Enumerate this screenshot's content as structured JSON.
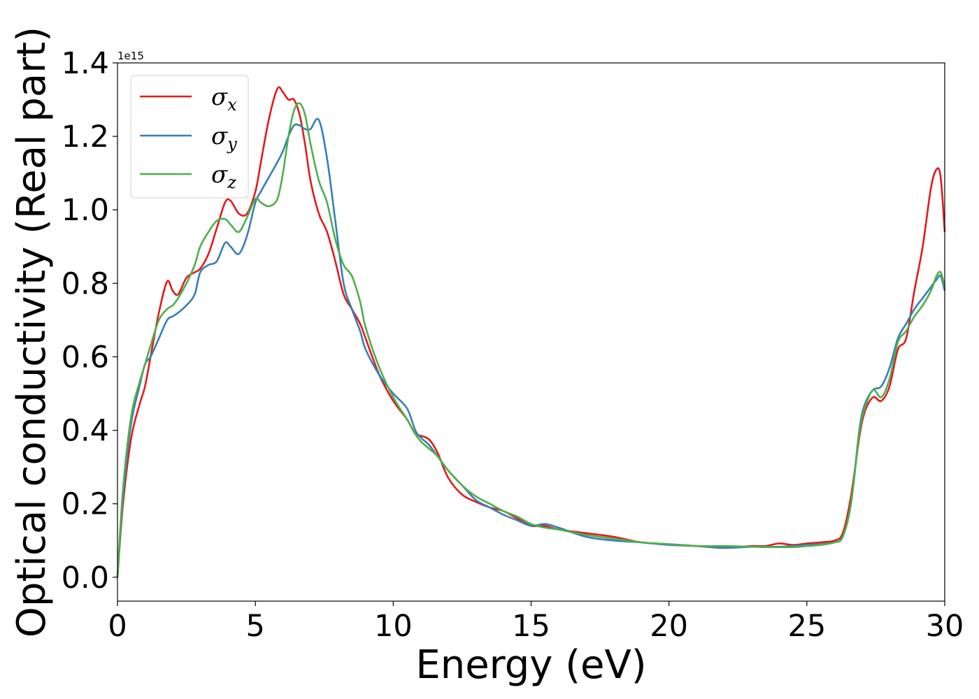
{
  "chart_data": {
    "type": "line",
    "title": "",
    "xlabel": "Energy (eV)",
    "ylabel": "Optical conductivity (Real part)",
    "y_offset_label": "1e15",
    "xlim": [
      0,
      30
    ],
    "ylim": [
      -0.065,
      1.4
    ],
    "xticks": [
      0,
      5,
      10,
      15,
      20,
      25,
      30
    ],
    "xtick_labels": [
      "0",
      "5",
      "10",
      "15",
      "20",
      "25",
      "30"
    ],
    "yticks": [
      0.0,
      0.2,
      0.4,
      0.6,
      0.8,
      1.0,
      1.2,
      1.4
    ],
    "ytick_labels": [
      "0.0",
      "0.2",
      "0.4",
      "0.6",
      "0.8",
      "1.0",
      "1.2",
      "1.4"
    ],
    "grid": false,
    "legend_position": "upper-left",
    "series": [
      {
        "name": "σx",
        "symbol": "σ",
        "subscript": "x",
        "color": "#e41a1c",
        "x": [
          0,
          0.2,
          0.5,
          0.8,
          1.0,
          1.2,
          1.5,
          1.8,
          2.0,
          2.2,
          2.5,
          2.8,
          3.0,
          3.3,
          3.6,
          3.9,
          4.1,
          4.4,
          4.7,
          5.0,
          5.2,
          5.5,
          5.8,
          6.0,
          6.2,
          6.4,
          6.6,
          6.8,
          7.0,
          7.3,
          7.6,
          7.9,
          8.2,
          8.5,
          8.8,
          9.0,
          9.5,
          10.0,
          10.5,
          10.8,
          11.0,
          11.3,
          11.6,
          12.0,
          12.5,
          13.0,
          13.5,
          14.0,
          14.5,
          15.0,
          15.5,
          16.0,
          17.0,
          18.0,
          19.0,
          20.0,
          21.0,
          22.0,
          23.0,
          23.5,
          24.0,
          24.5,
          25.0,
          25.5,
          26.0,
          26.3,
          26.6,
          26.9,
          27.1,
          27.4,
          27.7,
          28.0,
          28.3,
          28.6,
          28.9,
          29.2,
          29.5,
          29.7,
          29.85,
          30.0
        ],
        "y": [
          0.0,
          0.2,
          0.38,
          0.47,
          0.52,
          0.6,
          0.72,
          0.805,
          0.78,
          0.77,
          0.815,
          0.83,
          0.84,
          0.88,
          0.95,
          1.02,
          1.025,
          0.99,
          0.99,
          1.05,
          1.13,
          1.25,
          1.33,
          1.32,
          1.3,
          1.3,
          1.26,
          1.18,
          1.08,
          0.99,
          0.94,
          0.86,
          0.77,
          0.73,
          0.69,
          0.65,
          0.55,
          0.48,
          0.43,
          0.39,
          0.385,
          0.375,
          0.34,
          0.27,
          0.225,
          0.205,
          0.19,
          0.18,
          0.16,
          0.14,
          0.14,
          0.13,
          0.12,
          0.11,
          0.095,
          0.09,
          0.085,
          0.08,
          0.085,
          0.085,
          0.092,
          0.088,
          0.092,
          0.095,
          0.1,
          0.12,
          0.22,
          0.38,
          0.45,
          0.49,
          0.48,
          0.52,
          0.62,
          0.65,
          0.78,
          0.9,
          1.06,
          1.11,
          1.09,
          0.94
        ]
      },
      {
        "name": "σy",
        "symbol": "σ",
        "subscript": "y",
        "color": "#377eb8",
        "x": [
          0,
          0.2,
          0.5,
          0.8,
          1.0,
          1.2,
          1.5,
          1.8,
          2.0,
          2.2,
          2.5,
          2.8,
          3.0,
          3.3,
          3.6,
          3.9,
          4.1,
          4.4,
          4.7,
          5.0,
          5.2,
          5.5,
          5.8,
          6.0,
          6.2,
          6.4,
          6.6,
          6.8,
          7.0,
          7.3,
          7.6,
          7.9,
          8.2,
          8.5,
          8.8,
          9.0,
          9.5,
          10.0,
          10.5,
          10.8,
          11.0,
          11.3,
          11.6,
          12.0,
          12.5,
          13.0,
          13.5,
          14.0,
          14.5,
          15.0,
          15.5,
          16.0,
          17.0,
          18.0,
          19.0,
          20.0,
          21.0,
          22.0,
          23.0,
          23.5,
          24.0,
          24.5,
          25.0,
          25.5,
          26.0,
          26.3,
          26.6,
          26.9,
          27.1,
          27.4,
          27.7,
          28.0,
          28.3,
          28.6,
          28.9,
          29.2,
          29.5,
          29.7,
          29.85,
          30.0
        ],
        "y": [
          0.0,
          0.22,
          0.42,
          0.52,
          0.58,
          0.6,
          0.65,
          0.7,
          0.71,
          0.72,
          0.74,
          0.77,
          0.83,
          0.85,
          0.86,
          0.91,
          0.9,
          0.88,
          0.93,
          1.02,
          1.05,
          1.09,
          1.13,
          1.16,
          1.2,
          1.23,
          1.23,
          1.22,
          1.22,
          1.245,
          1.14,
          0.97,
          0.8,
          0.73,
          0.67,
          0.62,
          0.55,
          0.5,
          0.46,
          0.4,
          0.38,
          0.36,
          0.33,
          0.29,
          0.25,
          0.21,
          0.19,
          0.17,
          0.155,
          0.14,
          0.145,
          0.135,
          0.11,
          0.1,
          0.095,
          0.088,
          0.085,
          0.08,
          0.083,
          0.083,
          0.083,
          0.085,
          0.088,
          0.09,
          0.095,
          0.11,
          0.2,
          0.4,
          0.47,
          0.51,
          0.52,
          0.57,
          0.65,
          0.69,
          0.73,
          0.76,
          0.79,
          0.81,
          0.82,
          0.78
        ]
      },
      {
        "name": "σz",
        "symbol": "σ",
        "subscript": "z",
        "color": "#4daf4a",
        "x": [
          0,
          0.2,
          0.5,
          0.8,
          1.0,
          1.2,
          1.5,
          1.8,
          2.0,
          2.2,
          2.5,
          2.8,
          3.0,
          3.3,
          3.6,
          3.9,
          4.1,
          4.4,
          4.7,
          5.0,
          5.2,
          5.5,
          5.8,
          6.0,
          6.2,
          6.4,
          6.6,
          6.8,
          7.0,
          7.3,
          7.6,
          7.9,
          8.2,
          8.5,
          8.8,
          9.0,
          9.5,
          10.0,
          10.5,
          10.8,
          11.0,
          11.3,
          11.6,
          12.0,
          12.5,
          13.0,
          13.5,
          14.0,
          14.5,
          15.0,
          15.5,
          16.0,
          17.0,
          18.0,
          19.0,
          20.0,
          21.0,
          22.0,
          23.0,
          23.5,
          24.0,
          24.5,
          25.0,
          25.5,
          26.0,
          26.3,
          26.6,
          26.9,
          27.1,
          27.4,
          27.7,
          28.0,
          28.3,
          28.6,
          28.9,
          29.2,
          29.5,
          29.7,
          29.85,
          30.0
        ],
        "y": [
          0.0,
          0.24,
          0.44,
          0.53,
          0.58,
          0.63,
          0.7,
          0.73,
          0.74,
          0.76,
          0.8,
          0.85,
          0.9,
          0.94,
          0.97,
          0.975,
          0.96,
          0.94,
          0.98,
          1.03,
          1.02,
          1.01,
          1.03,
          1.1,
          1.2,
          1.27,
          1.29,
          1.26,
          1.18,
          1.08,
          1.02,
          0.92,
          0.85,
          0.82,
          0.75,
          0.68,
          0.57,
          0.49,
          0.43,
          0.39,
          0.37,
          0.35,
          0.33,
          0.29,
          0.25,
          0.22,
          0.2,
          0.18,
          0.165,
          0.145,
          0.135,
          0.13,
          0.115,
          0.105,
          0.095,
          0.09,
          0.085,
          0.085,
          0.083,
          0.082,
          0.082,
          0.082,
          0.085,
          0.088,
          0.095,
          0.11,
          0.2,
          0.39,
          0.46,
          0.51,
          0.49,
          0.54,
          0.64,
          0.67,
          0.71,
          0.74,
          0.78,
          0.82,
          0.83,
          0.79
        ]
      }
    ]
  }
}
